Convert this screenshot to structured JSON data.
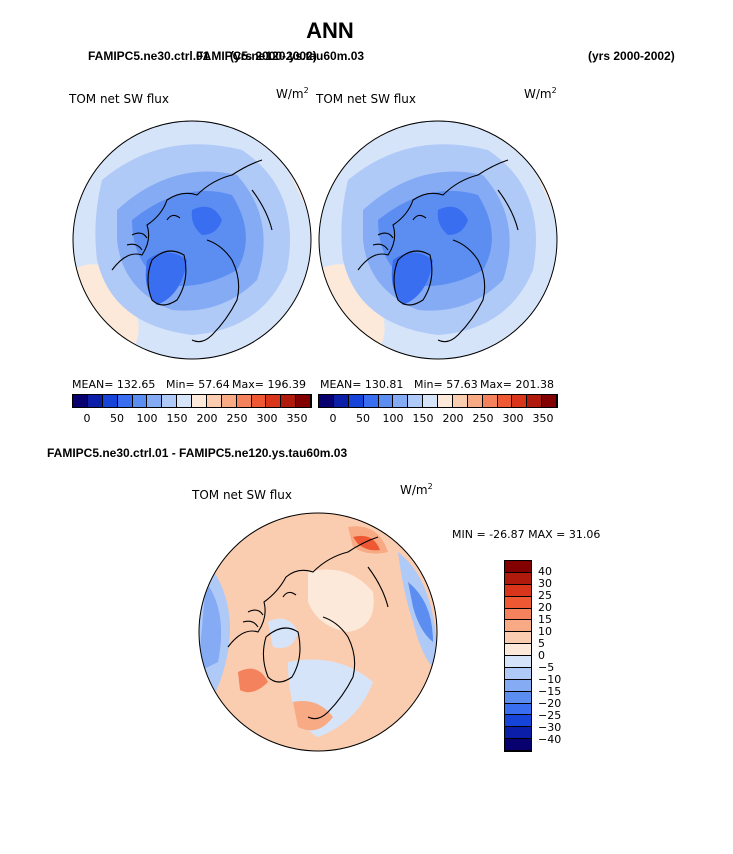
{
  "main_title": "ANN",
  "header": {
    "left_case": "FAMIPC5.ne30.ctrl.01",
    "left_years": "(yrs 2000-2002)",
    "right_case": "FAMIPC5.ne120.ys.tau60m.03",
    "right_years": "(yrs 2000-2002)"
  },
  "panels": [
    {
      "label": "TOM net SW flux",
      "units_base": "W/m",
      "units_exp": "2",
      "mean_text": "MEAN= 132.65",
      "min_text": "Min=  57.64",
      "max_text": "Max= 196.39",
      "colorbar_ticks": [
        "0",
        "50",
        "100",
        "150",
        "200",
        "250",
        "300",
        "350"
      ]
    },
    {
      "label": "TOM net SW flux",
      "units_base": "W/m",
      "units_exp": "2",
      "mean_text": "MEAN= 130.81",
      "min_text": "Min=  57.63",
      "max_text": "Max= 201.38",
      "colorbar_ticks": [
        "0",
        "50",
        "100",
        "150",
        "200",
        "250",
        "300",
        "350"
      ]
    }
  ],
  "abs_colors": [
    "#08006e",
    "#0a1ea8",
    "#1744d8",
    "#3a6ef0",
    "#5c8ef2",
    "#85abf5",
    "#b0caf7",
    "#d6e4fa",
    "#fce9da",
    "#fbcdb0",
    "#f8aa85",
    "#f4825c",
    "#ee5934",
    "#d8351b",
    "#b01a0d",
    "#820000"
  ],
  "diff": {
    "title": "FAMIPC5.ne30.ctrl.01 - FAMIPC5.ne120.ys.tau60m.03",
    "label": "TOM net SW flux",
    "units_base": "W/m",
    "units_exp": "2",
    "min_max_text": "MIN = -26.87  MAX =  31.06",
    "colorbar_ticks": [
      "40",
      "30",
      "25",
      "20",
      "15",
      "10",
      "5",
      "0",
      "−5",
      "−10",
      "−15",
      "−20",
      "−25",
      "−30",
      "−40"
    ]
  },
  "diff_colors": [
    "#820000",
    "#b01a0d",
    "#d8351b",
    "#ee5934",
    "#f4825c",
    "#f8aa85",
    "#fbcdb0",
    "#fce9da",
    "#d6e4fa",
    "#b0caf7",
    "#85abf5",
    "#5c8ef2",
    "#3a6ef0",
    "#1744d8",
    "#0a1ea8",
    "#08006e"
  ]
}
